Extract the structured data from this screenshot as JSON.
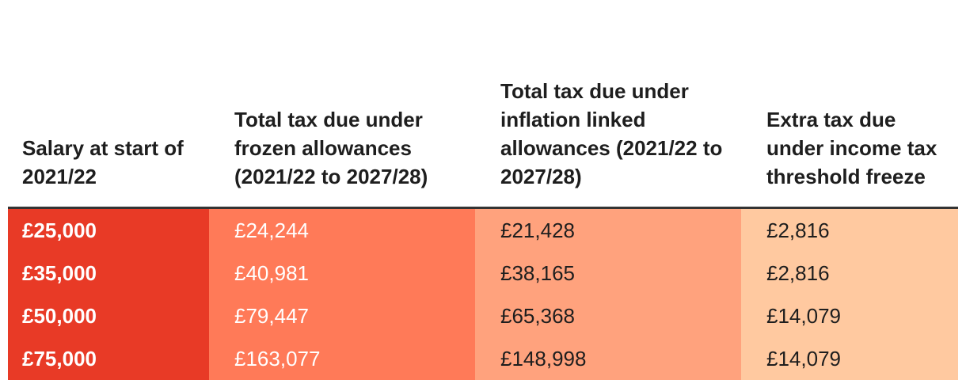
{
  "chart_data": {
    "type": "table",
    "columns": [
      "Salary at start of 2021/22",
      "Total tax due under frozen allowances (2021/22 to 2027/28)",
      "Total tax due under inflation linked allowances (2021/22 to 2027/28)",
      "Extra tax due under income tax threshold freeze"
    ],
    "rows": [
      [
        "£25,000",
        "£24,244",
        "£21,428",
        "£2,816"
      ],
      [
        "£35,000",
        "£40,981",
        "£38,165",
        "£2,816"
      ],
      [
        "£50,000",
        "£79,447",
        "£65,368",
        "£14,079"
      ],
      [
        "£75,000",
        "£163,077",
        "£148,998",
        "£14,079"
      ]
    ],
    "column_colors": [
      "#e83a26",
      "#ff7a58",
      "#ffa27d",
      "#ffc9a0"
    ]
  }
}
